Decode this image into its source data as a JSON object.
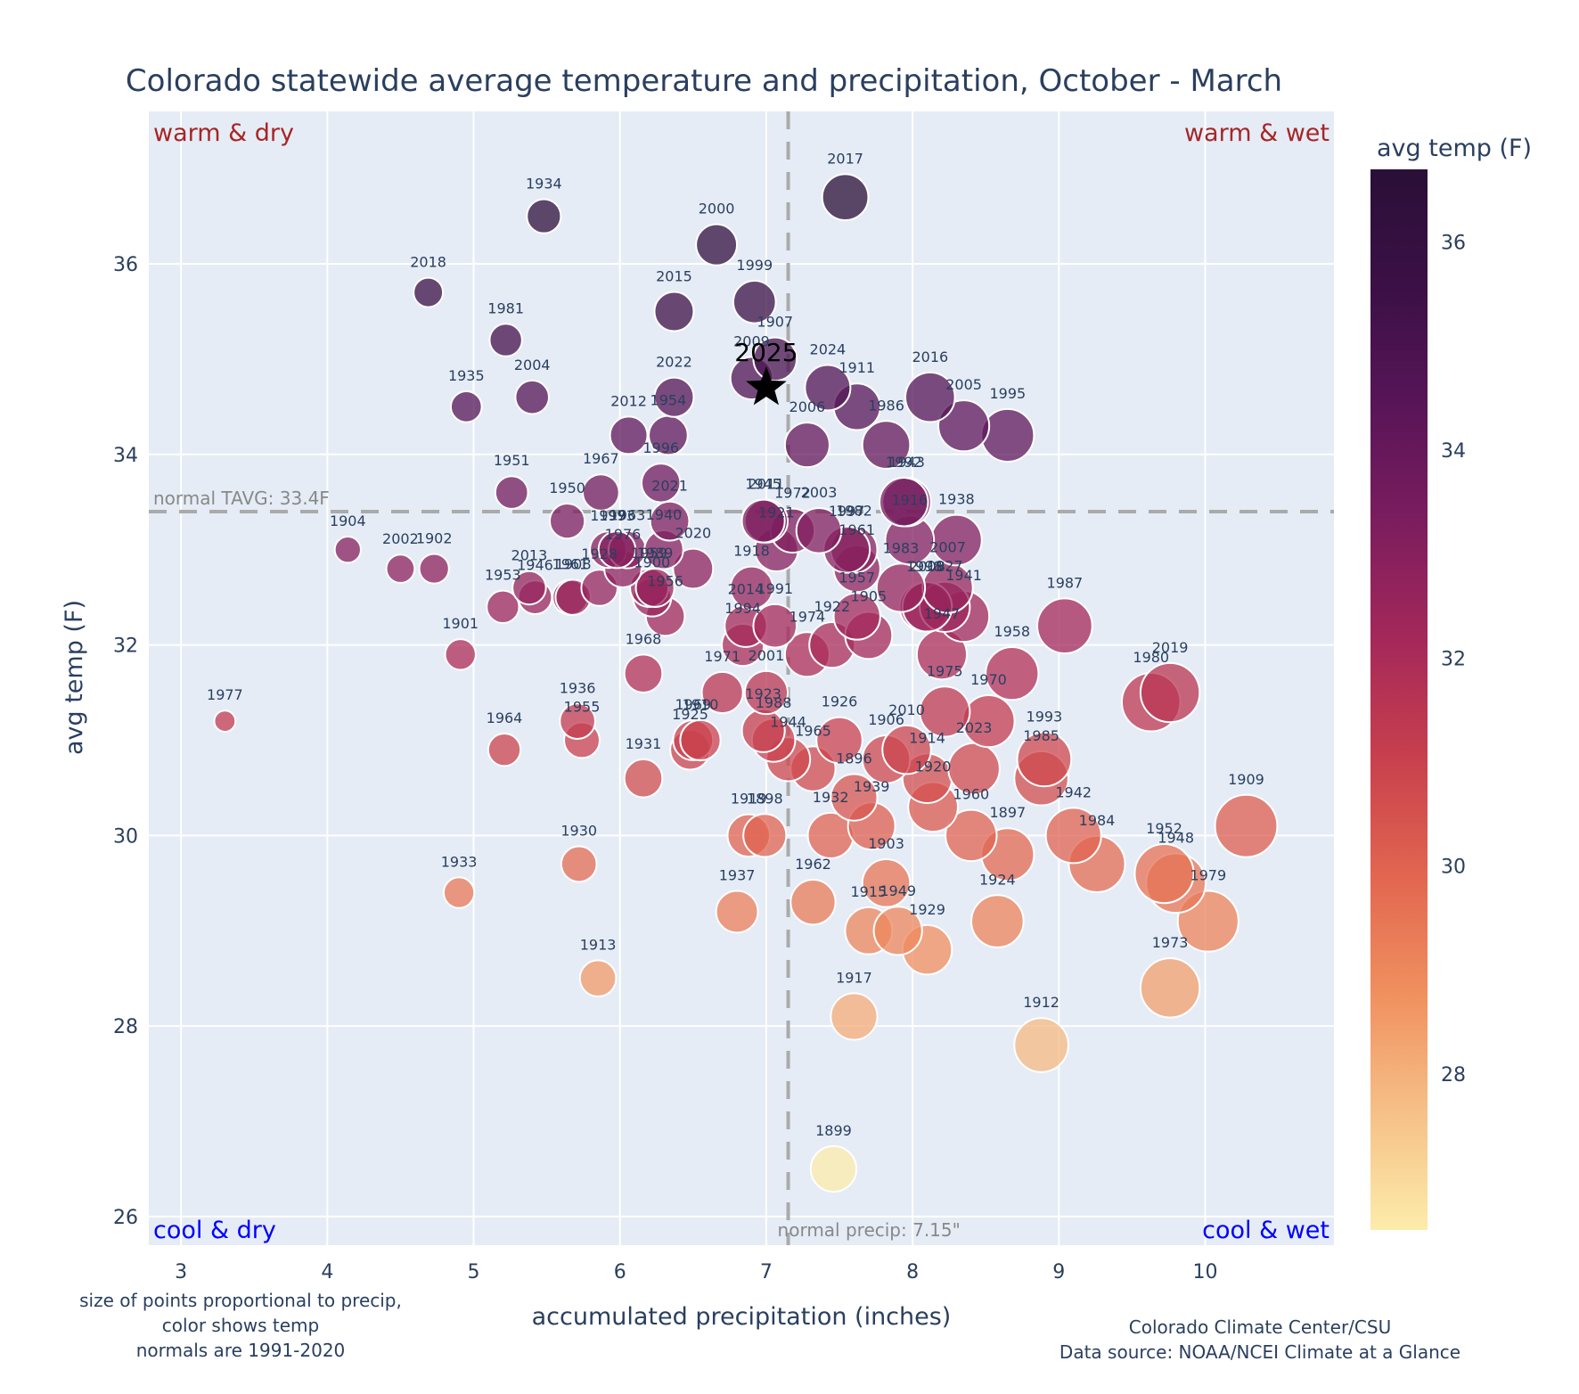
{
  "chart_data": {
    "type": "scatter",
    "title": "Colorado statewide average temperature and precipitation, October - March",
    "xlabel": "accumulated precipitation (inches)",
    "ylabel": "avg temp (F)",
    "xlim": [
      2.78,
      10.88
    ],
    "ylim": [
      25.7,
      37.6
    ],
    "xticks": [
      3,
      4,
      5,
      6,
      7,
      8,
      9,
      10
    ],
    "yticks": [
      26,
      28,
      30,
      32,
      34,
      36
    ],
    "grid": true,
    "colorbar": {
      "title": "avg temp (F)",
      "range": [
        26.5,
        36.7
      ],
      "ticks": [
        28,
        30,
        32,
        34,
        36
      ],
      "colorscale": [
        "#fcecab",
        "#f6c087",
        "#f0905f",
        "#e26650",
        "#c8404d",
        "#a5285a",
        "#7c1d5e",
        "#581558",
        "#3b1046",
        "#2a0f37"
      ]
    },
    "normals": {
      "temp": 33.4,
      "temp_label": "normal TAVG: 33.4F",
      "precip": 7.15,
      "precip_label": "normal precip: 7.15\""
    },
    "quadrants": {
      "top_left": {
        "text": "warm & dry",
        "color": "#a62626"
      },
      "top_right": {
        "text": "warm & wet",
        "color": "#a62626"
      },
      "bottom_left": {
        "text": "cool & dry",
        "color": "#0000ff"
      },
      "bottom_right": {
        "text": "cool & wet",
        "color": "#0000ff"
      }
    },
    "highlight": {
      "year": "2025",
      "precip": 7.0,
      "temp": 34.7,
      "marker": "star",
      "color": "#000000"
    },
    "points": [
      {
        "year": "1934",
        "precip": 5.48,
        "temp": 36.5
      },
      {
        "year": "2000",
        "precip": 6.66,
        "temp": 36.2
      },
      {
        "year": "2017",
        "precip": 7.54,
        "temp": 36.7
      },
      {
        "year": "2018",
        "precip": 4.69,
        "temp": 35.7
      },
      {
        "year": "2015",
        "precip": 6.37,
        "temp": 35.5
      },
      {
        "year": "1999",
        "precip": 6.92,
        "temp": 35.6
      },
      {
        "year": "1981",
        "precip": 5.22,
        "temp": 35.2
      },
      {
        "year": "1907",
        "precip": 7.06,
        "temp": 35.0
      },
      {
        "year": "2009",
        "precip": 6.9,
        "temp": 34.8
      },
      {
        "year": "2024",
        "precip": 7.42,
        "temp": 34.7
      },
      {
        "year": "1911",
        "precip": 7.62,
        "temp": 34.5
      },
      {
        "year": "2016",
        "precip": 8.12,
        "temp": 34.6
      },
      {
        "year": "2005",
        "precip": 8.35,
        "temp": 34.3
      },
      {
        "year": "1995",
        "precip": 8.65,
        "temp": 34.2
      },
      {
        "year": "1935",
        "precip": 4.95,
        "temp": 34.5
      },
      {
        "year": "2004",
        "precip": 5.4,
        "temp": 34.6
      },
      {
        "year": "2022",
        "precip": 6.37,
        "temp": 34.6
      },
      {
        "year": "1954",
        "precip": 6.33,
        "temp": 34.2
      },
      {
        "year": "2012",
        "precip": 6.06,
        "temp": 34.2
      },
      {
        "year": "2006",
        "precip": 7.28,
        "temp": 34.1
      },
      {
        "year": "1986",
        "precip": 7.82,
        "temp": 34.1
      },
      {
        "year": "1996",
        "precip": 6.28,
        "temp": 33.7
      },
      {
        "year": "1943",
        "precip": 7.96,
        "temp": 33.5
      },
      {
        "year": "1951",
        "precip": 5.26,
        "temp": 33.6
      },
      {
        "year": "1967",
        "precip": 5.87,
        "temp": 33.6
      },
      {
        "year": "2021",
        "precip": 6.34,
        "temp": 33.3
      },
      {
        "year": "1950",
        "precip": 5.64,
        "temp": 33.3
      },
      {
        "year": "1904",
        "precip": 4.14,
        "temp": 33.0
      },
      {
        "year": "2002",
        "precip": 4.5,
        "temp": 32.8
      },
      {
        "year": "1902",
        "precip": 4.73,
        "temp": 32.8
      },
      {
        "year": "1997",
        "precip": 5.92,
        "temp": 33.0
      },
      {
        "year": "1963",
        "precip": 6.05,
        "temp": 33.0
      },
      {
        "year": "1993x",
        "precip": 5.98,
        "temp": 33.0
      },
      {
        "year": "1940",
        "precip": 6.3,
        "temp": 33.0
      },
      {
        "year": "1959",
        "precip": 6.2,
        "temp": 32.6
      },
      {
        "year": "2020",
        "precip": 6.5,
        "temp": 32.8
      },
      {
        "year": "1976",
        "precip": 6.02,
        "temp": 32.8
      },
      {
        "year": "1989",
        "precip": 6.24,
        "temp": 32.6
      },
      {
        "year": "1900",
        "precip": 6.22,
        "temp": 32.5
      },
      {
        "year": "1956",
        "precip": 6.31,
        "temp": 32.3
      },
      {
        "year": "2013",
        "precip": 5.38,
        "temp": 32.6
      },
      {
        "year": "1946",
        "precip": 5.42,
        "temp": 32.5
      },
      {
        "year": "1961x",
        "precip": 5.66,
        "temp": 32.5
      },
      {
        "year": "1908",
        "precip": 5.68,
        "temp": 32.5
      },
      {
        "year": "1928",
        "precip": 5.86,
        "temp": 32.6
      },
      {
        "year": "1953",
        "precip": 5.2,
        "temp": 32.4
      },
      {
        "year": "2011",
        "precip": 7.0,
        "temp": 33.3
      },
      {
        "year": "1972",
        "precip": 7.18,
        "temp": 33.2
      },
      {
        "year": "2003",
        "precip": 7.36,
        "temp": 33.2
      },
      {
        "year": "1945",
        "precip": 6.98,
        "temp": 33.3
      },
      {
        "year": "1982",
        "precip": 7.6,
        "temp": 33.0
      },
      {
        "year": "1992",
        "precip": 7.94,
        "temp": 33.5
      },
      {
        "year": "1997b",
        "precip": 7.55,
        "temp": 33.0
      },
      {
        "year": "1938",
        "precip": 8.3,
        "temp": 33.1
      },
      {
        "year": "1918",
        "precip": 6.9,
        "temp": 32.6
      },
      {
        "year": "1921",
        "precip": 7.07,
        "temp": 33.0
      },
      {
        "year": "1916",
        "precip": 7.98,
        "temp": 33.1
      },
      {
        "year": "1961",
        "precip": 7.62,
        "temp": 32.8
      },
      {
        "year": "2007",
        "precip": 8.24,
        "temp": 32.6
      },
      {
        "year": "1983",
        "precip": 7.92,
        "temp": 32.6
      },
      {
        "year": "1998",
        "precip": 8.08,
        "temp": 32.4
      },
      {
        "year": "1927",
        "precip": 8.22,
        "temp": 32.4
      },
      {
        "year": "1941",
        "precip": 8.35,
        "temp": 32.3
      },
      {
        "year": "2008",
        "precip": 8.1,
        "temp": 32.4
      },
      {
        "year": "2014",
        "precip": 6.86,
        "temp": 32.2
      },
      {
        "year": "1991",
        "precip": 7.06,
        "temp": 32.2
      },
      {
        "year": "1957",
        "precip": 7.62,
        "temp": 32.3
      },
      {
        "year": "1922",
        "precip": 7.45,
        "temp": 32.0
      },
      {
        "year": "1974",
        "precip": 7.28,
        "temp": 31.9
      },
      {
        "year": "1994",
        "precip": 6.84,
        "temp": 32.0
      },
      {
        "year": "1905",
        "precip": 7.7,
        "temp": 32.1
      },
      {
        "year": "1987",
        "precip": 9.04,
        "temp": 32.2
      },
      {
        "year": "1958",
        "precip": 8.68,
        "temp": 31.7
      },
      {
        "year": "1947",
        "precip": 8.2,
        "temp": 31.9
      },
      {
        "year": "1968",
        "precip": 6.16,
        "temp": 31.7
      },
      {
        "year": "1971",
        "precip": 6.7,
        "temp": 31.5
      },
      {
        "year": "2001",
        "precip": 7.0,
        "temp": 31.5
      },
      {
        "year": "1901",
        "precip": 4.91,
        "temp": 31.9
      },
      {
        "year": "1977",
        "precip": 3.3,
        "temp": 31.2
      },
      {
        "year": "1970",
        "precip": 8.52,
        "temp": 31.2
      },
      {
        "year": "1980",
        "precip": 9.63,
        "temp": 31.4
      },
      {
        "year": "2019",
        "precip": 9.76,
        "temp": 31.5
      },
      {
        "year": "1936",
        "precip": 5.71,
        "temp": 31.2
      },
      {
        "year": "1955",
        "precip": 5.74,
        "temp": 31.0
      },
      {
        "year": "1964",
        "precip": 5.21,
        "temp": 30.9
      },
      {
        "year": "1969",
        "precip": 6.5,
        "temp": 31.0
      },
      {
        "year": "1910",
        "precip": 6.55,
        "temp": 31.0
      },
      {
        "year": "1925",
        "precip": 6.48,
        "temp": 30.9
      },
      {
        "year": "1923",
        "precip": 6.98,
        "temp": 31.1
      },
      {
        "year": "1988",
        "precip": 7.05,
        "temp": 31.0
      },
      {
        "year": "1944",
        "precip": 7.15,
        "temp": 30.8
      },
      {
        "year": "1965",
        "precip": 7.32,
        "temp": 30.7
      },
      {
        "year": "1926",
        "precip": 7.5,
        "temp": 31.0
      },
      {
        "year": "1906",
        "precip": 7.82,
        "temp": 30.8
      },
      {
        "year": "2010",
        "precip": 7.96,
        "temp": 30.9
      },
      {
        "year": "1975",
        "precip": 8.22,
        "temp": 31.3
      },
      {
        "year": "1914",
        "precip": 8.1,
        "temp": 30.6
      },
      {
        "year": "2023",
        "precip": 8.42,
        "temp": 30.7
      },
      {
        "year": "1993",
        "precip": 8.9,
        "temp": 30.8
      },
      {
        "year": "1985",
        "precip": 8.88,
        "temp": 30.6
      },
      {
        "year": "1931",
        "precip": 6.16,
        "temp": 30.6
      },
      {
        "year": "1896",
        "precip": 7.6,
        "temp": 30.4
      },
      {
        "year": "1939",
        "precip": 7.72,
        "temp": 30.1
      },
      {
        "year": "1920",
        "precip": 8.14,
        "temp": 30.3
      },
      {
        "year": "1960",
        "precip": 8.4,
        "temp": 30.0
      },
      {
        "year": "1897",
        "precip": 8.65,
        "temp": 29.8
      },
      {
        "year": "1942",
        "precip": 9.1,
        "temp": 30.0
      },
      {
        "year": "1984",
        "precip": 9.26,
        "temp": 29.7
      },
      {
        "year": "1909",
        "precip": 10.28,
        "temp": 30.1
      },
      {
        "year": "1919",
        "precip": 6.88,
        "temp": 30.0
      },
      {
        "year": "1898",
        "precip": 6.99,
        "temp": 30.0
      },
      {
        "year": "1932",
        "precip": 7.44,
        "temp": 30.0
      },
      {
        "year": "1903",
        "precip": 7.82,
        "temp": 29.5
      },
      {
        "year": "1930",
        "precip": 5.72,
        "temp": 29.7
      },
      {
        "year": "1933",
        "precip": 4.9,
        "temp": 29.4
      },
      {
        "year": "1962",
        "precip": 7.32,
        "temp": 29.3
      },
      {
        "year": "1937",
        "precip": 6.8,
        "temp": 29.2
      },
      {
        "year": "1915",
        "precip": 7.7,
        "temp": 29.0
      },
      {
        "year": "1949",
        "precip": 7.9,
        "temp": 29.0
      },
      {
        "year": "1929",
        "precip": 8.1,
        "temp": 28.8
      },
      {
        "year": "1924",
        "precip": 8.58,
        "temp": 29.1
      },
      {
        "year": "1952",
        "precip": 9.72,
        "temp": 29.6
      },
      {
        "year": "1948",
        "precip": 9.8,
        "temp": 29.5
      },
      {
        "year": "1979",
        "precip": 10.02,
        "temp": 29.1
      },
      {
        "year": "1973",
        "precip": 9.76,
        "temp": 28.4
      },
      {
        "year": "1913",
        "precip": 5.85,
        "temp": 28.5
      },
      {
        "year": "1917",
        "precip": 7.6,
        "temp": 28.1
      },
      {
        "year": "1912",
        "precip": 8.88,
        "temp": 27.8
      },
      {
        "year": "1899",
        "precip": 7.46,
        "temp": 26.5
      }
    ],
    "notes": {
      "left": [
        "size of points proportional to precip,",
        "color shows temp",
        "normals are 1991-2020"
      ],
      "right": [
        "Colorado Climate Center/CSU",
        "Data source: NOAA/NCEI Climate at a Glance"
      ]
    }
  }
}
